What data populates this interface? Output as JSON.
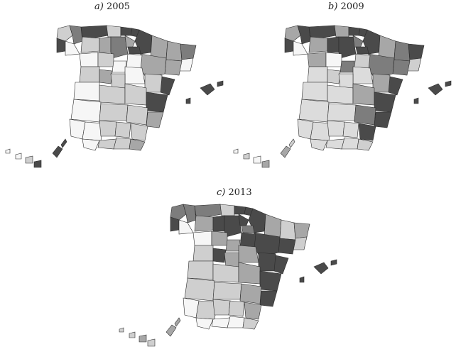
{
  "figure": {
    "panels": [
      {
        "letter": "a)",
        "year": "2005"
      },
      {
        "letter": "b)",
        "year": "2009"
      },
      {
        "letter": "c)",
        "year": "2013"
      }
    ]
  },
  "shade_colors": {
    "dark": "#4a4a4a",
    "medium_dark": "#7d7d7d",
    "medium": "#a7a7a7",
    "light": "#cfcfcf",
    "very_light": "#f6f6f6",
    "dotted": "#dcdcdc"
  }
}
